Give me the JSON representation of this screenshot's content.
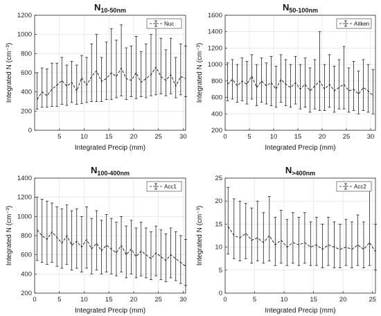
{
  "chart_data": [
    {
      "type": "errorbar-line",
      "title_main": "N",
      "title_sub": "10-50nm",
      "xlabel": "Integrated Precip (mm)",
      "ylabel": "Integrated N (cm⁻³)",
      "xlim": [
        0,
        30.5
      ],
      "ylim": [
        0,
        1200
      ],
      "xticks": [
        5,
        10,
        15,
        20,
        25,
        30
      ],
      "yticks": [
        0,
        200,
        400,
        600,
        800,
        1000,
        1200
      ],
      "grid": true,
      "legend": "top-right",
      "series": [
        {
          "name": "Nuc",
          "x": [
            0.5,
            1.5,
            2.5,
            3.5,
            4.5,
            5.5,
            6.5,
            7.5,
            8.5,
            9.5,
            10.5,
            11.5,
            12.5,
            13.5,
            14.5,
            15.5,
            16.5,
            17.5,
            18.5,
            19.5,
            20.5,
            21.5,
            22.5,
            23.5,
            24.5,
            25.5,
            26.5,
            27.5,
            28.5,
            29.5,
            30.5
          ],
          "y": [
            320,
            400,
            360,
            430,
            470,
            520,
            460,
            500,
            410,
            550,
            470,
            560,
            620,
            510,
            540,
            600,
            560,
            650,
            540,
            520,
            600,
            500,
            540,
            580,
            660,
            560,
            520,
            580,
            460,
            560,
            540
          ],
          "lower": [
            220,
            240,
            240,
            250,
            250,
            270,
            260,
            290,
            270,
            280,
            290,
            300,
            300,
            300,
            320,
            320,
            340,
            360,
            320,
            350,
            330,
            350,
            340,
            360,
            370,
            380,
            360,
            380,
            340,
            370,
            350
          ],
          "upper": [
            600,
            650,
            640,
            700,
            700,
            760,
            680,
            720,
            680,
            780,
            760,
            900,
            1000,
            760,
            920,
            1060,
            940,
            1100,
            860,
            880,
            980,
            820,
            900,
            1000,
            1100,
            960,
            840,
            960,
            760,
            900,
            880
          ]
        }
      ]
    },
    {
      "type": "errorbar-line",
      "title_main": "N",
      "title_sub": "50-100nm",
      "xlabel": "Integrated Precip (mm)",
      "ylabel": "Integrated N (cm⁻³)",
      "xlim": [
        0,
        31
      ],
      "ylim": [
        200,
        1600
      ],
      "xticks": [
        0,
        5,
        10,
        15,
        20,
        25,
        30
      ],
      "yticks": [
        200,
        400,
        600,
        800,
        1000,
        1200,
        1400,
        1600
      ],
      "grid": true,
      "legend": "top-right",
      "series": [
        {
          "name": "Aitken",
          "x": [
            0.5,
            1.5,
            2.5,
            3.5,
            4.5,
            5.5,
            6.5,
            7.5,
            8.5,
            9.5,
            10.5,
            11.5,
            12.5,
            13.5,
            14.5,
            15.5,
            16.5,
            17.5,
            18.5,
            19.5,
            20.5,
            21.5,
            22.5,
            23.5,
            24.5,
            25.5,
            26.5,
            27.5,
            28.5,
            29.5,
            30.5
          ],
          "y": [
            760,
            820,
            740,
            800,
            760,
            860,
            720,
            800,
            740,
            780,
            700,
            820,
            760,
            720,
            780,
            700,
            760,
            680,
            740,
            800,
            700,
            760,
            680,
            720,
            760,
            680,
            700,
            640,
            720,
            680,
            620
          ],
          "lower": [
            560,
            580,
            540,
            560,
            520,
            580,
            500,
            540,
            520,
            500,
            480,
            540,
            500,
            480,
            520,
            460,
            480,
            420,
            460,
            440,
            440,
            480,
            420,
            460,
            460,
            420,
            440,
            400,
            440,
            420,
            400
          ],
          "upper": [
            1020,
            1060,
            1000,
            1080,
            1040,
            1120,
            1000,
            1080,
            1020,
            1100,
            980,
            1120,
            1060,
            1000,
            1100,
            1000,
            1080,
            960,
            1060,
            1400,
            1000,
            1120,
            980,
            1060,
            1220,
            960,
            1040,
            920,
            1060,
            1000,
            940
          ]
        }
      ]
    },
    {
      "type": "errorbar-line",
      "title_main": "N",
      "title_sub": "100-400nm",
      "xlabel": "Integrated Precip (mm)",
      "ylabel": "Integrated N (cm⁻³)",
      "xlim": [
        0,
        30.5
      ],
      "ylim": [
        200,
        1400
      ],
      "xticks": [
        0,
        5,
        10,
        15,
        20,
        25,
        30
      ],
      "yticks": [
        200,
        400,
        600,
        800,
        1000,
        1200,
        1400
      ],
      "grid": true,
      "legend": "top-right",
      "series": [
        {
          "name": "Acc1",
          "x": [
            0.5,
            1.5,
            2.5,
            3.5,
            4.5,
            5.5,
            6.5,
            7.5,
            8.5,
            9.5,
            10.5,
            11.5,
            12.5,
            13.5,
            14.5,
            15.5,
            16.5,
            17.5,
            18.5,
            19.5,
            20.5,
            21.5,
            22.5,
            23.5,
            24.5,
            25.5,
            26.5,
            27.5,
            28.5,
            29.5,
            30.5
          ],
          "y": [
            860,
            800,
            760,
            840,
            780,
            720,
            800,
            700,
            740,
            680,
            760,
            660,
            720,
            640,
            700,
            660,
            620,
            700,
            600,
            660,
            580,
            640,
            600,
            560,
            620,
            580,
            540,
            600,
            560,
            520,
            480
          ],
          "lower": [
            540,
            520,
            500,
            520,
            480,
            460,
            500,
            440,
            460,
            420,
            460,
            400,
            440,
            400,
            420,
            400,
            380,
            420,
            360,
            400,
            360,
            380,
            360,
            340,
            380,
            340,
            320,
            360,
            330,
            300,
            280
          ],
          "upper": [
            1200,
            1180,
            1160,
            1140,
            1100,
            1080,
            1120,
            1060,
            1080,
            1000,
            1100,
            980,
            1060,
            960,
            1020,
            980,
            940,
            1000,
            900,
            960,
            880,
            940,
            880,
            840,
            900,
            860,
            820,
            880,
            840,
            800,
            760
          ]
        }
      ]
    },
    {
      "type": "errorbar-line",
      "title_main": "N",
      "title_sub": ">400nm",
      "xlabel": "Integrated Precip (mm)",
      "ylabel": "Integrated N (cm⁻³)",
      "xlim": [
        0,
        25.5
      ],
      "ylim": [
        0,
        25
      ],
      "xticks": [
        0,
        5,
        10,
        15,
        20,
        25
      ],
      "yticks": [
        0,
        5,
        10,
        15,
        20,
        25
      ],
      "grid": true,
      "legend": "top-right",
      "series": [
        {
          "name": "Acc2",
          "x": [
            0.5,
            1.5,
            2.5,
            3.5,
            4.5,
            5.5,
            6.5,
            7.5,
            8.5,
            9.5,
            10.5,
            11.5,
            12.5,
            13.5,
            14.5,
            15.5,
            16.5,
            17.5,
            18.5,
            19.5,
            20.5,
            21.5,
            22.5,
            23.5,
            24.5,
            25.5
          ],
          "y": [
            14.5,
            12.5,
            12.0,
            13.0,
            11.5,
            12.0,
            11.0,
            12.5,
            10.5,
            11.5,
            10.0,
            11.0,
            10.5,
            11.0,
            10.0,
            10.5,
            9.5,
            10.5,
            10.0,
            9.5,
            10.0,
            9.5,
            10.5,
            9.5,
            11.0,
            9.0
          ],
          "lower": [
            8.5,
            7.5,
            7.0,
            7.5,
            6.5,
            7.0,
            6.5,
            7.0,
            6.0,
            6.5,
            6.0,
            6.5,
            6.0,
            6.5,
            6.0,
            6.0,
            5.5,
            6.0,
            5.5,
            5.5,
            6.0,
            5.5,
            6.0,
            5.5,
            6.0,
            5.0
          ],
          "upper": [
            23.0,
            20.5,
            20.0,
            19.5,
            18.5,
            20.0,
            17.5,
            21.0,
            16.5,
            18.0,
            16.0,
            17.5,
            16.5,
            17.5,
            15.5,
            16.5,
            15.0,
            16.5,
            15.5,
            15.0,
            16.0,
            15.5,
            17.0,
            15.5,
            24.0,
            15.0
          ]
        }
      ]
    }
  ]
}
